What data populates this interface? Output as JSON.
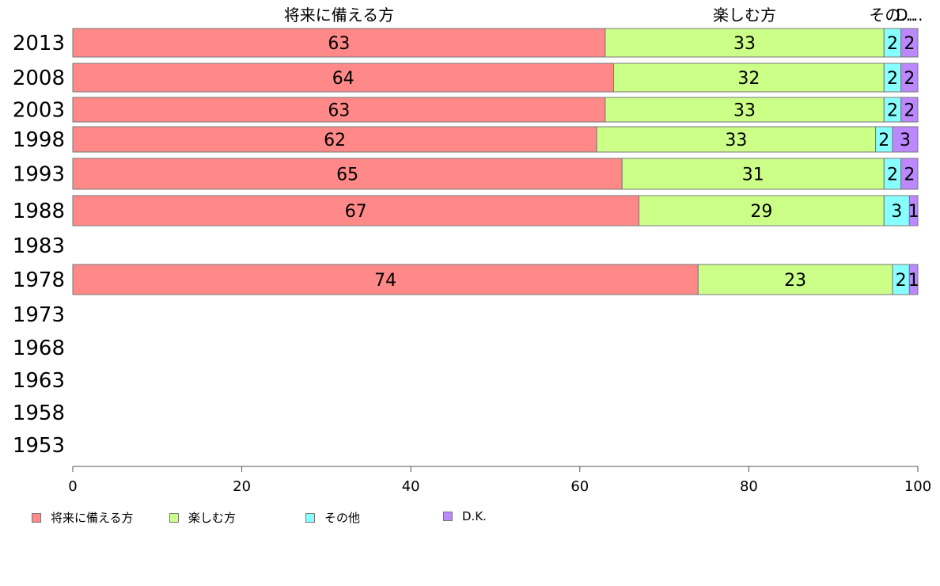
{
  "chart_data": {
    "type": "bar",
    "orientation": "horizontal",
    "stacked": true,
    "categories": [
      "2013",
      "2008",
      "2003",
      "1998",
      "1993",
      "1988",
      "1983",
      "1978",
      "1973",
      "1968",
      "1963",
      "1958",
      "1953"
    ],
    "series": [
      {
        "name": "将来に備える方",
        "color": "#ff8888",
        "values": [
          63,
          64,
          63,
          62,
          65,
          67,
          null,
          74,
          null,
          null,
          null,
          null,
          null
        ]
      },
      {
        "name": "楽しむ方",
        "color": "#ccff88",
        "values": [
          33,
          32,
          33,
          33,
          31,
          29,
          null,
          23,
          null,
          null,
          null,
          null,
          null
        ]
      },
      {
        "name": "その他",
        "color": "#88ffff",
        "values": [
          2,
          2,
          2,
          2,
          2,
          3,
          null,
          2,
          null,
          null,
          null,
          null,
          null
        ]
      },
      {
        "name": "D.K.",
        "color": "#bb88ff",
        "values": [
          2,
          2,
          2,
          3,
          2,
          1,
          null,
          1,
          null,
          null,
          null,
          null,
          null
        ]
      }
    ],
    "top_labels": [
      "将来に備える方",
      "楽しむ方",
      "その...",
      "D..."
    ],
    "xlim": [
      0,
      100
    ],
    "xticks": [
      "0",
      "20",
      "40",
      "60",
      "80",
      "100"
    ],
    "grid": false,
    "legend_position": "bottom-left"
  }
}
